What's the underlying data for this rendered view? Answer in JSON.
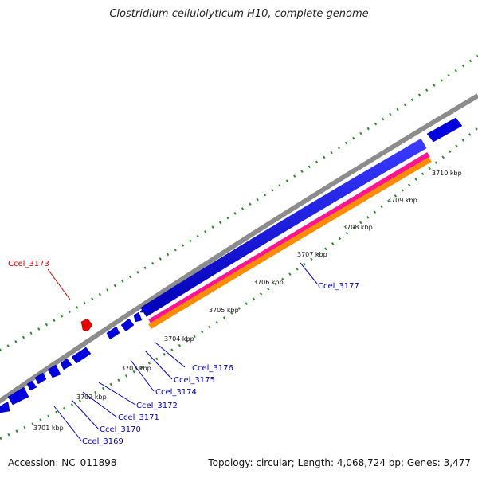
{
  "title": "Clostridium cellulolyticum H10, complete genome",
  "footer": {
    "accession": "Accession: NC_011898",
    "summary": "Topology: circular; Length: 4,068,724 bp; Genes: 3,477"
  },
  "colors": {
    "backbone": "#8c8c8c",
    "gene_forward": "#0000e0",
    "gene_highlight": "#e60000",
    "track_magenta": "#ff1493",
    "track_orange": "#ff8c00",
    "ticks": "#2a8a2a",
    "label_blue": "#0000b4",
    "label_red": "#cc0000"
  },
  "scale": {
    "labels": [
      "3701 kbp",
      "3702 kbp",
      "3703 kbp",
      "3704 kbp",
      "3705 kbp",
      "3706 kbp",
      "3707 kbp",
      "3708 kbp",
      "3709 kbp",
      "3710 kbp"
    ]
  },
  "genes": {
    "labels": [
      "Ccel_3173",
      "Ccel_3177",
      "Ccel_3176",
      "Ccel_3175",
      "Ccel_3174",
      "Ccel_3172",
      "Ccel_3171",
      "Ccel_3170",
      "Ccel_3169"
    ]
  }
}
